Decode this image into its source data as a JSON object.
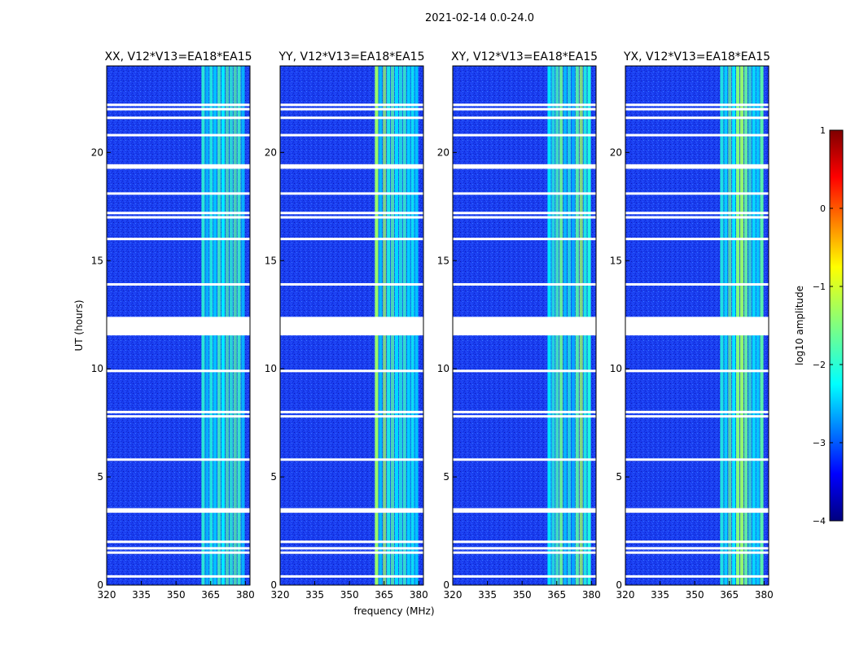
{
  "chart_data": {
    "type": "heatmap",
    "title": "2021-02-14 0.0-24.0",
    "xlabel": "frequency (MHz)",
    "ylabel": "UT (hours)",
    "xlim": [
      320,
      382
    ],
    "ylim": [
      0,
      24
    ],
    "xticks": [
      320,
      335,
      350,
      365,
      380
    ],
    "yticks": [
      0,
      5,
      10,
      15,
      20
    ],
    "panels": [
      {
        "title": "XX, V12*V13=EA18*EA15",
        "pol": "XX"
      },
      {
        "title": "YY, V12*V13=EA18*EA15",
        "pol": "YY"
      },
      {
        "title": "XY, V12*V13=EA18*EA15",
        "pol": "XY"
      },
      {
        "title": "YX, V12*V13=EA18*EA15",
        "pol": "YX"
      }
    ],
    "colorbar": {
      "label": "log10 amplitude",
      "range": [
        -4,
        1
      ],
      "ticks": [
        1,
        0,
        -1,
        -2,
        -3,
        -4
      ],
      "colormap": "jet"
    },
    "background_log_amplitude": -3.3,
    "rfi_band_mhz": [
      361,
      380
    ],
    "rfi_log_amplitude_range": [
      -2.5,
      -1.3
    ],
    "flagged_ut_hours": [
      0.4,
      1.5,
      1.7,
      2.0,
      3.4,
      3.5,
      5.8,
      7.8,
      8.0,
      9.9,
      11.6,
      12.3,
      13.9,
      16.0,
      17.0,
      17.2,
      18.1,
      19.3,
      19.4,
      20.8,
      21.6,
      22.0,
      22.2
    ],
    "gap_ut_hours": [
      12.0
    ]
  },
  "colors": {
    "axis": "#000000",
    "background": "#ffffff"
  }
}
